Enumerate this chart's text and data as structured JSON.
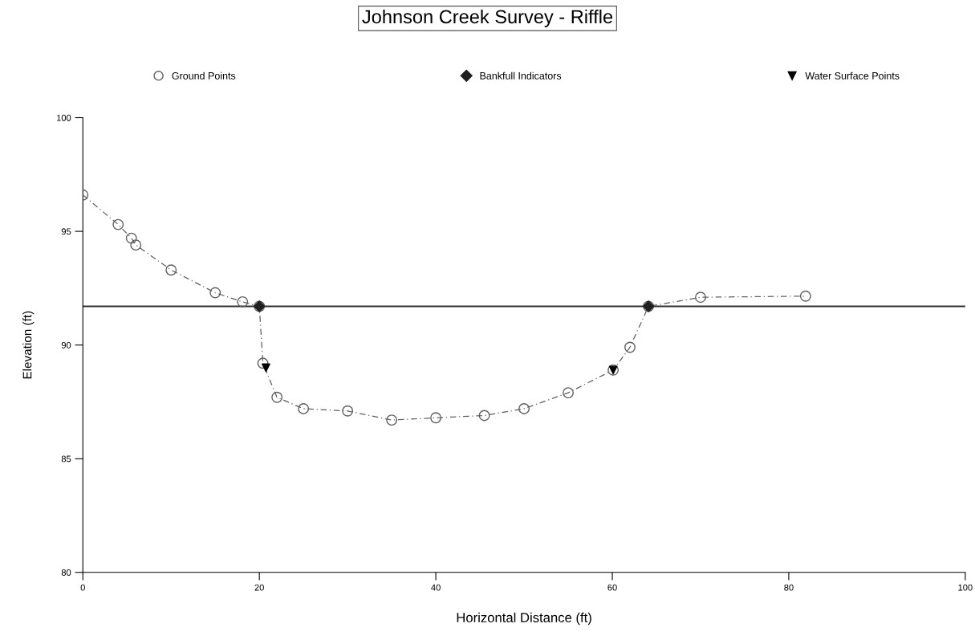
{
  "chart_data": {
    "type": "line",
    "title": "Johnson Creek Survey - Riffle",
    "xlabel": "Horizontal Distance (ft)",
    "ylabel": "Elevation (ft)",
    "series": [
      {
        "name": "Ground Points",
        "marker": "circle",
        "line_style": "dashed",
        "color": "#606060",
        "x": [
          0,
          4,
          5.5,
          6,
          10,
          15,
          18.1,
          20,
          20.4,
          22,
          25,
          30,
          35,
          40,
          45.5,
          50,
          55,
          60.1,
          62,
          64.1,
          70,
          81.9
        ],
        "values": [
          96.6,
          95.3,
          94.7,
          94.4,
          93.3,
          92.3,
          91.9,
          91.7,
          89.2,
          87.7,
          87.2,
          87.1,
          86.7,
          86.8,
          86.9,
          87.2,
          87.9,
          88.9,
          89.9,
          91.7,
          92.1,
          92.15
        ]
      },
      {
        "name": "Bankfull Indicators",
        "type": "scatter",
        "marker": "diamond",
        "color": "#202020",
        "x": [
          20,
          64.1
        ],
        "values": [
          91.7,
          91.7
        ]
      },
      {
        "name": "Water Surface Points",
        "type": "scatter",
        "marker": "triangle",
        "color": "#000000",
        "x": [
          20.75,
          60.1
        ],
        "values": [
          89.0,
          88.9
        ]
      }
    ],
    "ref_lines": [
      {
        "axis": "y",
        "value": 91.7,
        "color": "#303030",
        "line_style": "solid"
      }
    ],
    "xlim": [
      0,
      100
    ],
    "xticks": [
      0,
      20,
      40,
      60,
      80,
      100
    ],
    "ylim": [
      80,
      100
    ],
    "yticks": [
      80,
      85,
      90,
      95,
      100
    ],
    "grid": false,
    "legend": "top"
  }
}
